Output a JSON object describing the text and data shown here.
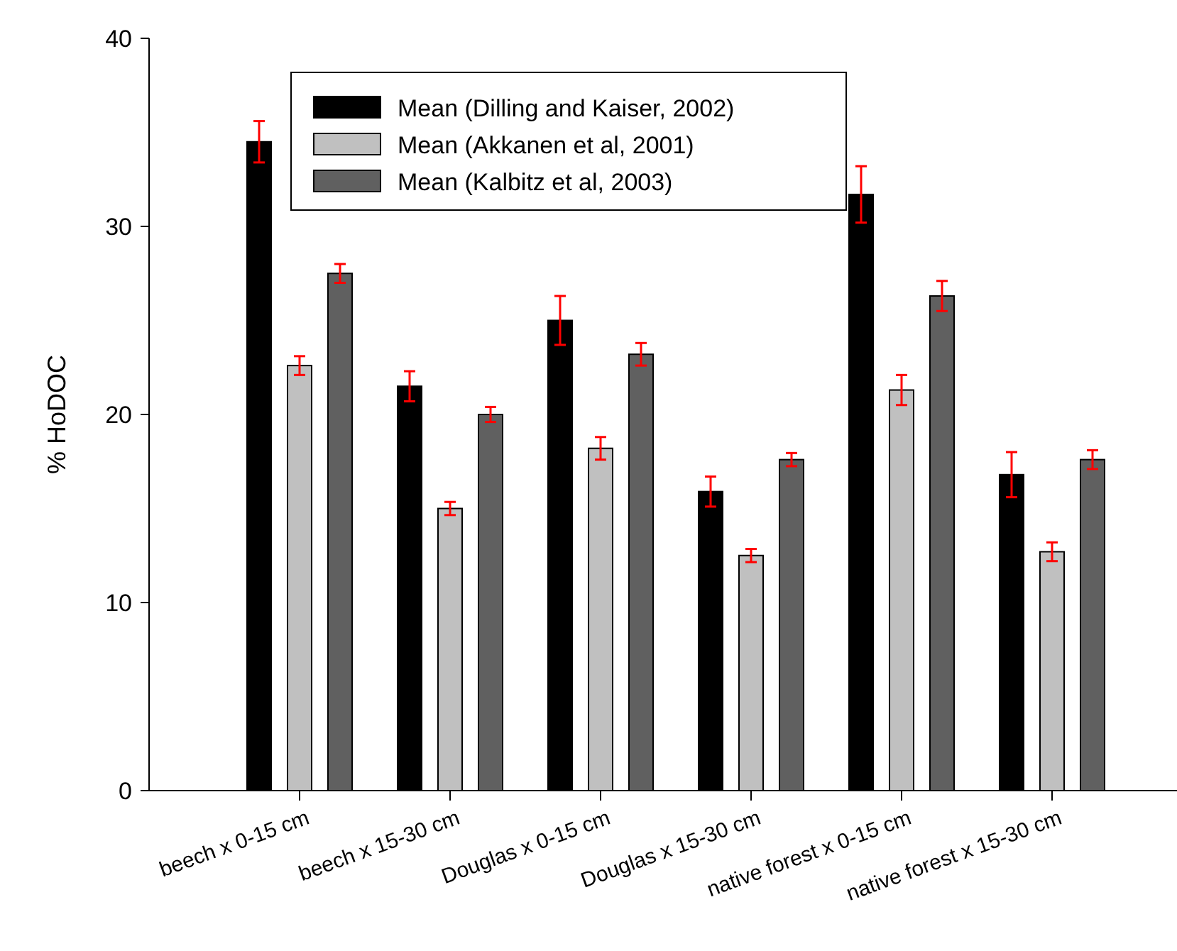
{
  "chart_data": {
    "type": "bar",
    "ylabel": "% HoDOC",
    "categories": [
      "beech x 0-15 cm",
      "beech x 15-30 cm",
      "Douglas x 0-15 cm",
      "Douglas x 15-30 cm",
      "native forest x 0-15 cm",
      "native forest x 15-30 cm"
    ],
    "series": [
      {
        "name": "Mean (Dilling and Kaiser, 2002)",
        "color": "#000000",
        "values": [
          34.5,
          21.5,
          25.0,
          15.9,
          31.7,
          16.8
        ],
        "errors": [
          1.1,
          0.8,
          1.3,
          0.8,
          1.5,
          1.2
        ]
      },
      {
        "name": "Mean (Akkanen et al, 2001)",
        "color": "#c0c0c0",
        "values": [
          22.6,
          15.0,
          18.2,
          12.5,
          21.3,
          12.7
        ],
        "errors": [
          0.5,
          0.35,
          0.6,
          0.35,
          0.8,
          0.5
        ]
      },
      {
        "name": "Mean (Kalbitz et al, 2003)",
        "color": "#606060",
        "values": [
          27.5,
          20.0,
          23.2,
          17.6,
          26.3,
          17.6
        ],
        "errors": [
          0.5,
          0.4,
          0.6,
          0.35,
          0.8,
          0.5
        ]
      }
    ],
    "ylim": [
      0,
      40
    ],
    "yticks": [
      0,
      10,
      20,
      30,
      40
    ],
    "grid": false,
    "legend": "top"
  }
}
